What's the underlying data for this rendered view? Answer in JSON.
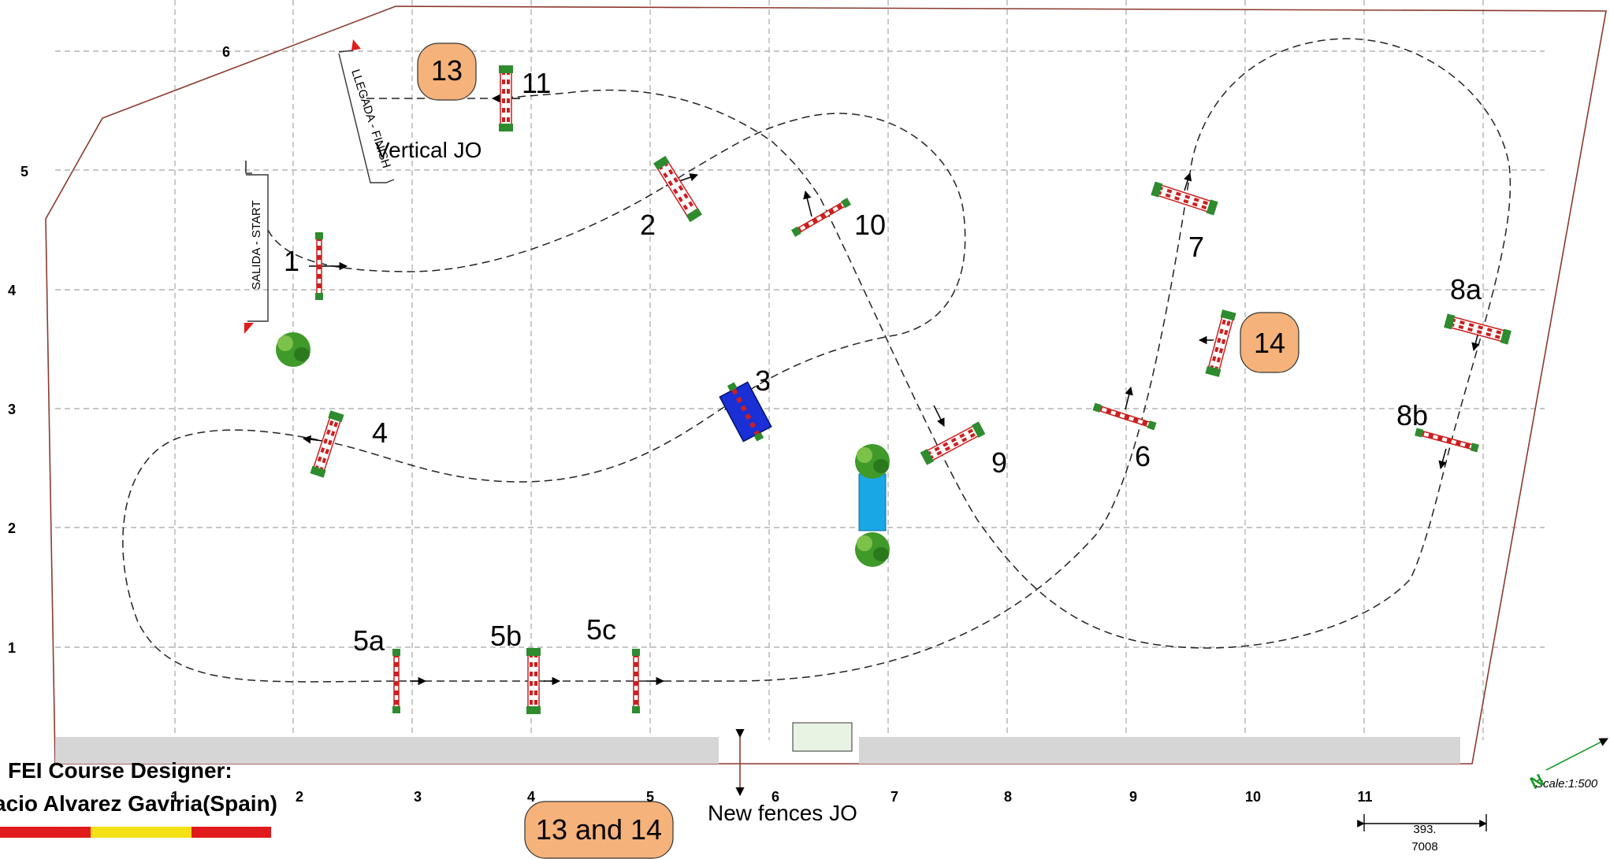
{
  "course": {
    "fences": [
      {
        "id": "f1",
        "label": "1"
      },
      {
        "id": "f2",
        "label": "2"
      },
      {
        "id": "f3",
        "label": "3"
      },
      {
        "id": "f4",
        "label": "4"
      },
      {
        "id": "f5a",
        "label": "5a"
      },
      {
        "id": "f5b",
        "label": "5b"
      },
      {
        "id": "f5c",
        "label": "5c"
      },
      {
        "id": "f6",
        "label": "6"
      },
      {
        "id": "f7",
        "label": "7"
      },
      {
        "id": "f8a",
        "label": "8a"
      },
      {
        "id": "f8b",
        "label": "8b"
      },
      {
        "id": "f9",
        "label": "9"
      },
      {
        "id": "f10",
        "label": "10"
      },
      {
        "id": "f11",
        "label": "11"
      }
    ],
    "start_label": "SALIDA - START",
    "finish_label": "LLEGADA - FINISH",
    "vertical_jo": "Vertical JO",
    "jo_fences": {
      "b13": "13",
      "b14": "14",
      "b13and14": "13 and 14"
    },
    "new_fences_jo": "New fences JO"
  },
  "grid": {
    "x_labels": [
      "1",
      "2",
      "3",
      "4",
      "5",
      "6",
      "7",
      "8",
      "9",
      "10",
      "11"
    ],
    "y_labels": [
      "1",
      "2",
      "3",
      "4",
      "5",
      "6"
    ]
  },
  "designer": {
    "title": "FEI Course Designer:",
    "name": "acio Alvarez Gaviria(Spain)"
  },
  "scale": {
    "text": "Scale:1:500",
    "bar_top": "393.",
    "bar_bottom": "7008"
  },
  "compass": {
    "north": "N"
  },
  "colors": {
    "border": "#8b3a2e",
    "grid": "#b4b4b4",
    "pole_red": "#cc1f1f",
    "stand_green": "#2e8b2e",
    "water": "#1aa7e6",
    "water_jump": "#1a2fd6",
    "badge_fill": "#f5b27a",
    "flag_red": "#e11b1b",
    "flag_yellow": "#f6e016"
  }
}
